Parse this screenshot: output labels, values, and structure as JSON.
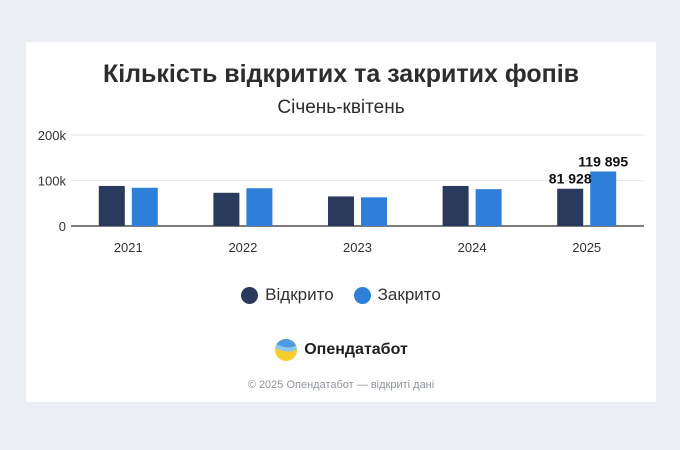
{
  "title": "Кількість відкритих та закритих фопів",
  "subtitle": "Січень-квітень",
  "colors": {
    "opened": "#2a3a5c",
    "closed": "#2e7fd9",
    "grid": "#e3e6ea",
    "axis": "#2d2d2d"
  },
  "brand": {
    "name": "Опендатабот",
    "logo_icon": "opendatabot-logo-icon"
  },
  "footer": "© 2025 Опендатабот — відкриті дані",
  "chart_data": {
    "type": "bar",
    "title": "Кількість відкритих та закритих фопів",
    "subtitle": "Січень-квітень",
    "categories": [
      "2021",
      "2022",
      "2023",
      "2024",
      "2025"
    ],
    "series": [
      {
        "name": "Відкрито",
        "values": [
          88000,
          73000,
          65000,
          88000,
          81928
        ]
      },
      {
        "name": "Закрито",
        "values": [
          84000,
          83000,
          63000,
          81000,
          119895
        ]
      }
    ],
    "data_labels": [
      {
        "series": "Відкрито",
        "category": "2025",
        "text": "81 928"
      },
      {
        "series": "Закрито",
        "category": "2025",
        "text": "119 895"
      }
    ],
    "y_ticks": [
      {
        "value": 0,
        "label": "0"
      },
      {
        "value": 100000,
        "label": "100k"
      },
      {
        "value": 200000,
        "label": "200k"
      }
    ],
    "ylim": [
      0,
      200000
    ],
    "xlabel": "",
    "ylabel": "",
    "grid": true,
    "legend_position": "bottom"
  }
}
